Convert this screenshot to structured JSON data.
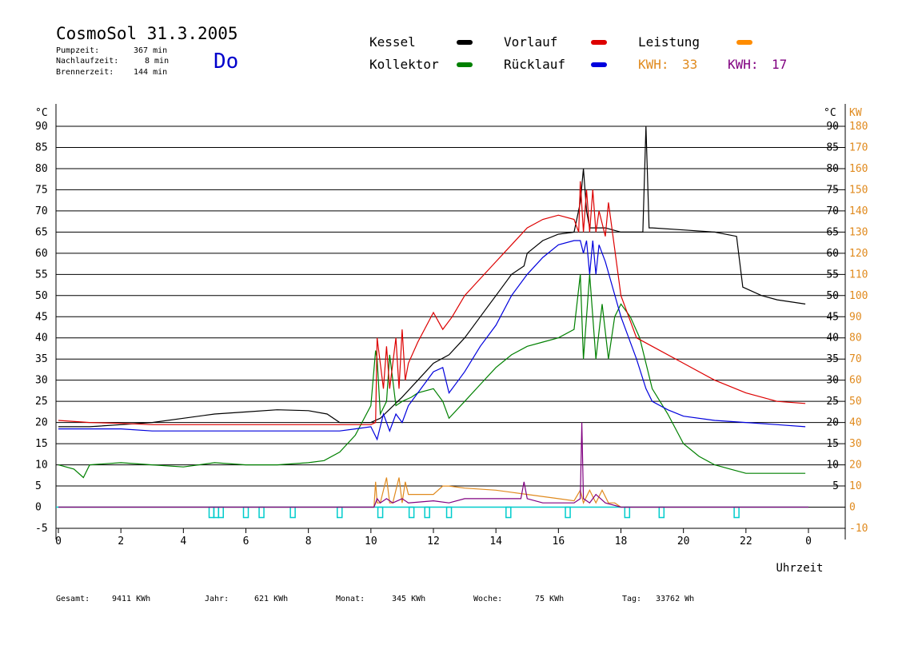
{
  "header": {
    "title": "CosmoSol 31.3.2005",
    "pumpzeit_label": "Pumpzeit:",
    "pumpzeit_value": "367 min",
    "nachlaufzeit_label": "Nachlaufzeit:",
    "nachlaufzeit_value": "8 min",
    "brennerzeit_label": "Brennerzeit:",
    "brennerzeit_value": "144 min",
    "weekday": "Do"
  },
  "legend": {
    "kessel": {
      "label": "Kessel",
      "color": "#000000"
    },
    "kollektor": {
      "label": "Kollektor",
      "color": "#008000"
    },
    "vorlauf": {
      "label": "Vorlauf",
      "color": "#dd0000"
    },
    "ruecklauf": {
      "label": "Rücklauf",
      "color": "#0000dd"
    },
    "leistung": {
      "label": "Leistung",
      "color": "#ff8c00"
    },
    "kwh_orange_label": "KWH:",
    "kwh_orange_value": "33",
    "kwh_orange_color": "#e08a1e",
    "kwh_purple_label": "KWH:",
    "kwh_purple_value": "17",
    "kwh_purple_color": "#800080"
  },
  "footer": {
    "gesamt_label": "Gesamt:",
    "gesamt_value": "9411 KWh",
    "jahr_label": "Jahr:",
    "jahr_value": "621 KWh",
    "monat_label": "Monat:",
    "monat_value": "345 KWh",
    "woche_label": "Woche:",
    "woche_value": "75 KWh",
    "tag_label": "Tag:",
    "tag_value": "33762 Wh"
  },
  "chart_data": {
    "type": "line",
    "xlabel": "Uhrzeit",
    "ylabel_left": "°C",
    "ylabel_right_c": "°C",
    "ylabel_right_kw": "KW",
    "xlim": [
      0,
      24
    ],
    "ylim": [
      -5,
      90
    ],
    "ylim_kw": [
      -10,
      180
    ],
    "x_ticks": [
      "0",
      "2",
      "4",
      "6",
      "8",
      "10",
      "12",
      "14",
      "16",
      "18",
      "20",
      "22",
      "0"
    ],
    "y_ticks": [
      "90",
      "85",
      "80",
      "75",
      "70",
      "65",
      "60",
      "55",
      "50",
      "45",
      "40",
      "35",
      "30",
      "25",
      "20",
      "15",
      "10",
      "5",
      "0",
      "-5"
    ],
    "y_ticks_right_c": [
      "90",
      "85",
      "80",
      "75",
      "70",
      "65",
      "60",
      "55",
      "50",
      "45",
      "40",
      "35",
      "30",
      "25",
      "20",
      "15",
      "10",
      "5"
    ],
    "y_ticks_right_kw": [
      "180",
      "170",
      "160",
      "150",
      "140",
      "130",
      "120",
      "110",
      "100",
      "90",
      "80",
      "70",
      "60",
      "50",
      "40",
      "30",
      "20",
      "10",
      "0",
      "-10"
    ],
    "grid": "horizontal",
    "series": [
      {
        "name": "Kessel",
        "color": "#000000",
        "x": [
          0,
          1,
          2,
          3,
          4,
          5,
          6,
          7,
          8,
          8.6,
          9,
          10,
          10.3,
          11,
          11.5,
          12,
          12.5,
          13,
          13.5,
          14,
          14.5,
          14.9,
          15,
          15.5,
          16,
          16.5,
          16.7,
          16.8,
          16.9,
          17,
          17.5,
          18,
          18.5,
          18.7,
          18.8,
          18.9,
          19,
          20,
          21,
          21.7,
          21.9,
          22.5,
          23,
          23.9
        ],
        "y": [
          19,
          19,
          19.5,
          20,
          21,
          22,
          22.5,
          23,
          22.8,
          22,
          20,
          20,
          21,
          26,
          30,
          34,
          36,
          40,
          45,
          50,
          55,
          57,
          60,
          63,
          64.5,
          65,
          72,
          80,
          70,
          66,
          66,
          65,
          65,
          65,
          90,
          66,
          66,
          65.5,
          65,
          64,
          52,
          50,
          49,
          48
        ]
      },
      {
        "name": "Kollektor",
        "color": "#008000",
        "x": [
          0,
          0.5,
          0.8,
          1,
          2,
          3,
          4,
          5,
          6,
          7,
          8,
          8.5,
          9,
          9.5,
          10,
          10.15,
          10.2,
          10.3,
          10.5,
          10.6,
          10.8,
          11,
          11.3,
          11.5,
          12,
          12.3,
          12.5,
          13,
          13.5,
          14,
          14.5,
          15,
          15.5,
          16,
          16.5,
          16.7,
          16.8,
          17,
          17.2,
          17.4,
          17.6,
          17.8,
          18,
          18.3,
          18.6,
          18.8,
          19,
          19.5,
          20,
          20.5,
          21,
          21.5,
          22,
          22.5,
          23,
          23.9
        ],
        "y": [
          10,
          9,
          7,
          10,
          10.5,
          10,
          9.5,
          10.5,
          10,
          10,
          10.5,
          11,
          13,
          17,
          24,
          37,
          35,
          22,
          25,
          36,
          24,
          25,
          26,
          27,
          28,
          25,
          21,
          25,
          29,
          33,
          36,
          38,
          39,
          40,
          42,
          55,
          35,
          55,
          35,
          48,
          35,
          45,
          48,
          45,
          40,
          34,
          28,
          22,
          15,
          12,
          10,
          9,
          8,
          8,
          8,
          8
        ]
      },
      {
        "name": "Vorlauf",
        "color": "#dd0000",
        "x": [
          0,
          1,
          2,
          3,
          4,
          5,
          6,
          7,
          8,
          9,
          9.5,
          10,
          10.15,
          10.2,
          10.4,
          10.5,
          10.6,
          10.8,
          10.9,
          11,
          11.1,
          11.2,
          11.5,
          12,
          12.3,
          12.6,
          13,
          13.5,
          14,
          14.5,
          15,
          15.5,
          16,
          16.5,
          16.65,
          16.7,
          16.8,
          16.9,
          17,
          17.1,
          17.2,
          17.3,
          17.5,
          17.6,
          18,
          18.5,
          19,
          20,
          21,
          22,
          23,
          23.9
        ],
        "y": [
          20.5,
          20,
          19.8,
          19.5,
          19.5,
          19.5,
          19.5,
          19.5,
          19.5,
          19.5,
          19.5,
          19.5,
          20,
          40,
          28,
          38,
          28,
          40,
          28,
          42,
          30,
          34,
          39,
          46,
          42,
          45,
          50,
          54,
          58,
          62,
          66,
          68,
          69,
          68,
          65,
          77,
          65,
          75,
          65,
          75,
          65,
          70,
          64,
          72,
          50,
          40,
          38,
          34,
          30,
          27,
          25,
          24.5
        ]
      },
      {
        "name": "Rücklauf",
        "color": "#0000dd",
        "x": [
          0,
          1,
          2,
          3,
          4,
          5,
          6,
          7,
          8,
          9,
          9.5,
          10,
          10.2,
          10.4,
          10.6,
          10.8,
          11,
          11.2,
          11.5,
          12,
          12.3,
          12.5,
          12.8,
          13,
          13.5,
          14,
          14.5,
          15,
          15.5,
          16,
          16.5,
          16.7,
          16.8,
          16.9,
          17,
          17.1,
          17.2,
          17.3,
          17.5,
          18,
          18.5,
          18.8,
          19,
          19.5,
          20,
          21,
          22,
          23,
          23.9
        ],
        "y": [
          18.5,
          18.5,
          18.5,
          18,
          18,
          18,
          18,
          18,
          18,
          18,
          18.5,
          19,
          16,
          22,
          18,
          22,
          20,
          24,
          27,
          32,
          33,
          27,
          30,
          32,
          38,
          43,
          50,
          55,
          59,
          62,
          63,
          63,
          60,
          63,
          55,
          63,
          55,
          62,
          58,
          45,
          35,
          28,
          25,
          23,
          21.5,
          20.5,
          20,
          19.5,
          19
        ]
      },
      {
        "name": "Leistung",
        "color": "#e08a1e",
        "x": [
          0,
          10.1,
          10.15,
          10.2,
          10.3,
          10.5,
          10.6,
          10.7,
          10.9,
          11,
          11.1,
          11.2,
          12,
          12.3,
          12.5,
          13,
          14,
          15,
          16,
          16.5,
          16.7,
          16.8,
          17,
          17.2,
          17.4,
          17.6,
          17.8,
          18,
          19,
          24
        ],
        "y": [
          0,
          0,
          6,
          1,
          1,
          7,
          1,
          1,
          7,
          1,
          6,
          3,
          3,
          5,
          5,
          4.5,
          4,
          3,
          2,
          1.5,
          4,
          1,
          4,
          1,
          4,
          1,
          1,
          0,
          0,
          0
        ]
      },
      {
        "name": "KWH_purple",
        "color": "#800080",
        "x": [
          0,
          10.1,
          10.2,
          10.3,
          10.5,
          10.7,
          11,
          11.2,
          12,
          12.5,
          13,
          14,
          14.8,
          14.9,
          15,
          15.5,
          16,
          16.5,
          16.7,
          16.75,
          16.8,
          17,
          17.2,
          17.5,
          18,
          24
        ],
        "y": [
          0,
          0,
          2,
          1,
          2,
          1,
          2,
          1,
          1.5,
          1,
          2,
          2,
          2,
          6,
          2,
          1,
          1,
          1,
          2,
          20,
          2,
          1,
          3,
          1,
          0,
          0
        ]
      }
    ],
    "brenner_marks_hours": [
      4.9,
      5.05,
      5.2,
      6.0,
      6.5,
      7.5,
      9.0,
      10.3,
      11.3,
      11.8,
      12.5,
      14.4,
      16.3,
      18.2,
      19.3,
      21.7
    ]
  }
}
